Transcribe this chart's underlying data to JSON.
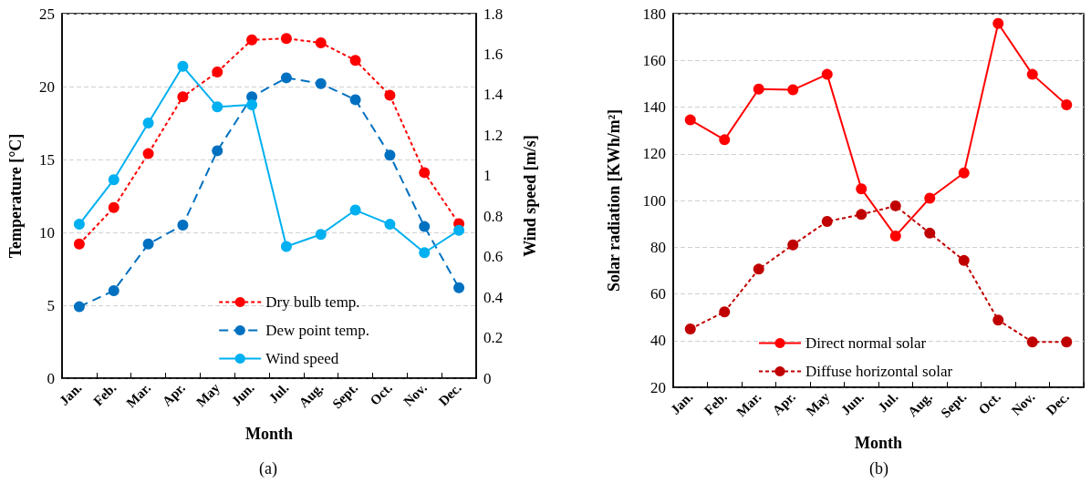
{
  "chart_data": [
    {
      "type": "line",
      "xlabel": "Month",
      "ylabel": "Temperature [°C]",
      "y2label": "Wind speed [m/s]",
      "categories": [
        "Jan.",
        "Feb.",
        "Mar.",
        "Apr.",
        "May",
        "Jun.",
        "Jul.",
        "Aug.",
        "Sept.",
        "Oct.",
        "Nov.",
        "Dec."
      ],
      "series": [
        {
          "name": "Dry bulb temp.",
          "color": "#ff0000",
          "line_style": "dotted",
          "values": [
            9.2,
            11.7,
            15.4,
            19.3,
            21.0,
            23.2,
            23.3,
            23.0,
            21.8,
            19.4,
            14.1,
            10.6
          ]
        },
        {
          "name": "Dew point temp.",
          "color": "#0070c0",
          "line_style": "dashed",
          "values": [
            4.9,
            6.0,
            9.2,
            10.5,
            15.6,
            19.3,
            20.6,
            20.2,
            19.1,
            15.3,
            10.4,
            6.2
          ]
        },
        {
          "name": "Wind speed",
          "color": "#00b0f0",
          "line_style": "solid",
          "axis": "y2",
          "values": [
            0.76,
            0.98,
            1.26,
            1.54,
            1.34,
            1.35,
            0.65,
            0.71,
            0.83,
            0.76,
            0.62,
            0.73
          ]
        }
      ],
      "ylim": [
        0,
        25
      ],
      "yticks": [
        0,
        5,
        10,
        15,
        20,
        25
      ],
      "y2lim": [
        0,
        1.8
      ],
      "y2ticks": [
        0,
        0.2,
        0.4,
        0.6,
        0.8,
        1,
        1.2,
        1.4,
        1.6,
        1.8
      ],
      "grid": "y",
      "legend": "bottom right",
      "marker": "circle",
      "annotations": [
        "(a)"
      ]
    },
    {
      "type": "line",
      "xlabel": "Month",
      "ylabel": "Solar radiation [KWh/m²]",
      "categories": [
        "Jan.",
        "Feb.",
        "Mar.",
        "Apr.",
        "May",
        "Jun.",
        "Jul.",
        "Aug.",
        "Sept.",
        "Oct.",
        "Nov.",
        "Dec."
      ],
      "series": [
        {
          "name": "Direct normal solar",
          "color": "#ff0000",
          "line_style": "solid",
          "values": [
            134.5,
            126,
            147.7,
            147.4,
            154,
            105,
            84.8,
            101,
            111.8,
            175.8,
            154,
            141
          ]
        },
        {
          "name": "Diffuse horizontal solar",
          "color": "#c00000",
          "line_style": "dotted",
          "values": [
            45,
            52.3,
            70.6,
            81,
            91,
            94,
            97.7,
            86,
            74.3,
            48.8,
            39.4,
            39.4
          ]
        }
      ],
      "ylim": [
        20,
        180
      ],
      "yticks": [
        20,
        40,
        60,
        80,
        100,
        120,
        140,
        160,
        180
      ],
      "grid": "y",
      "legend": "bottom",
      "marker": "circle",
      "annotations": [
        "(b)"
      ]
    }
  ]
}
